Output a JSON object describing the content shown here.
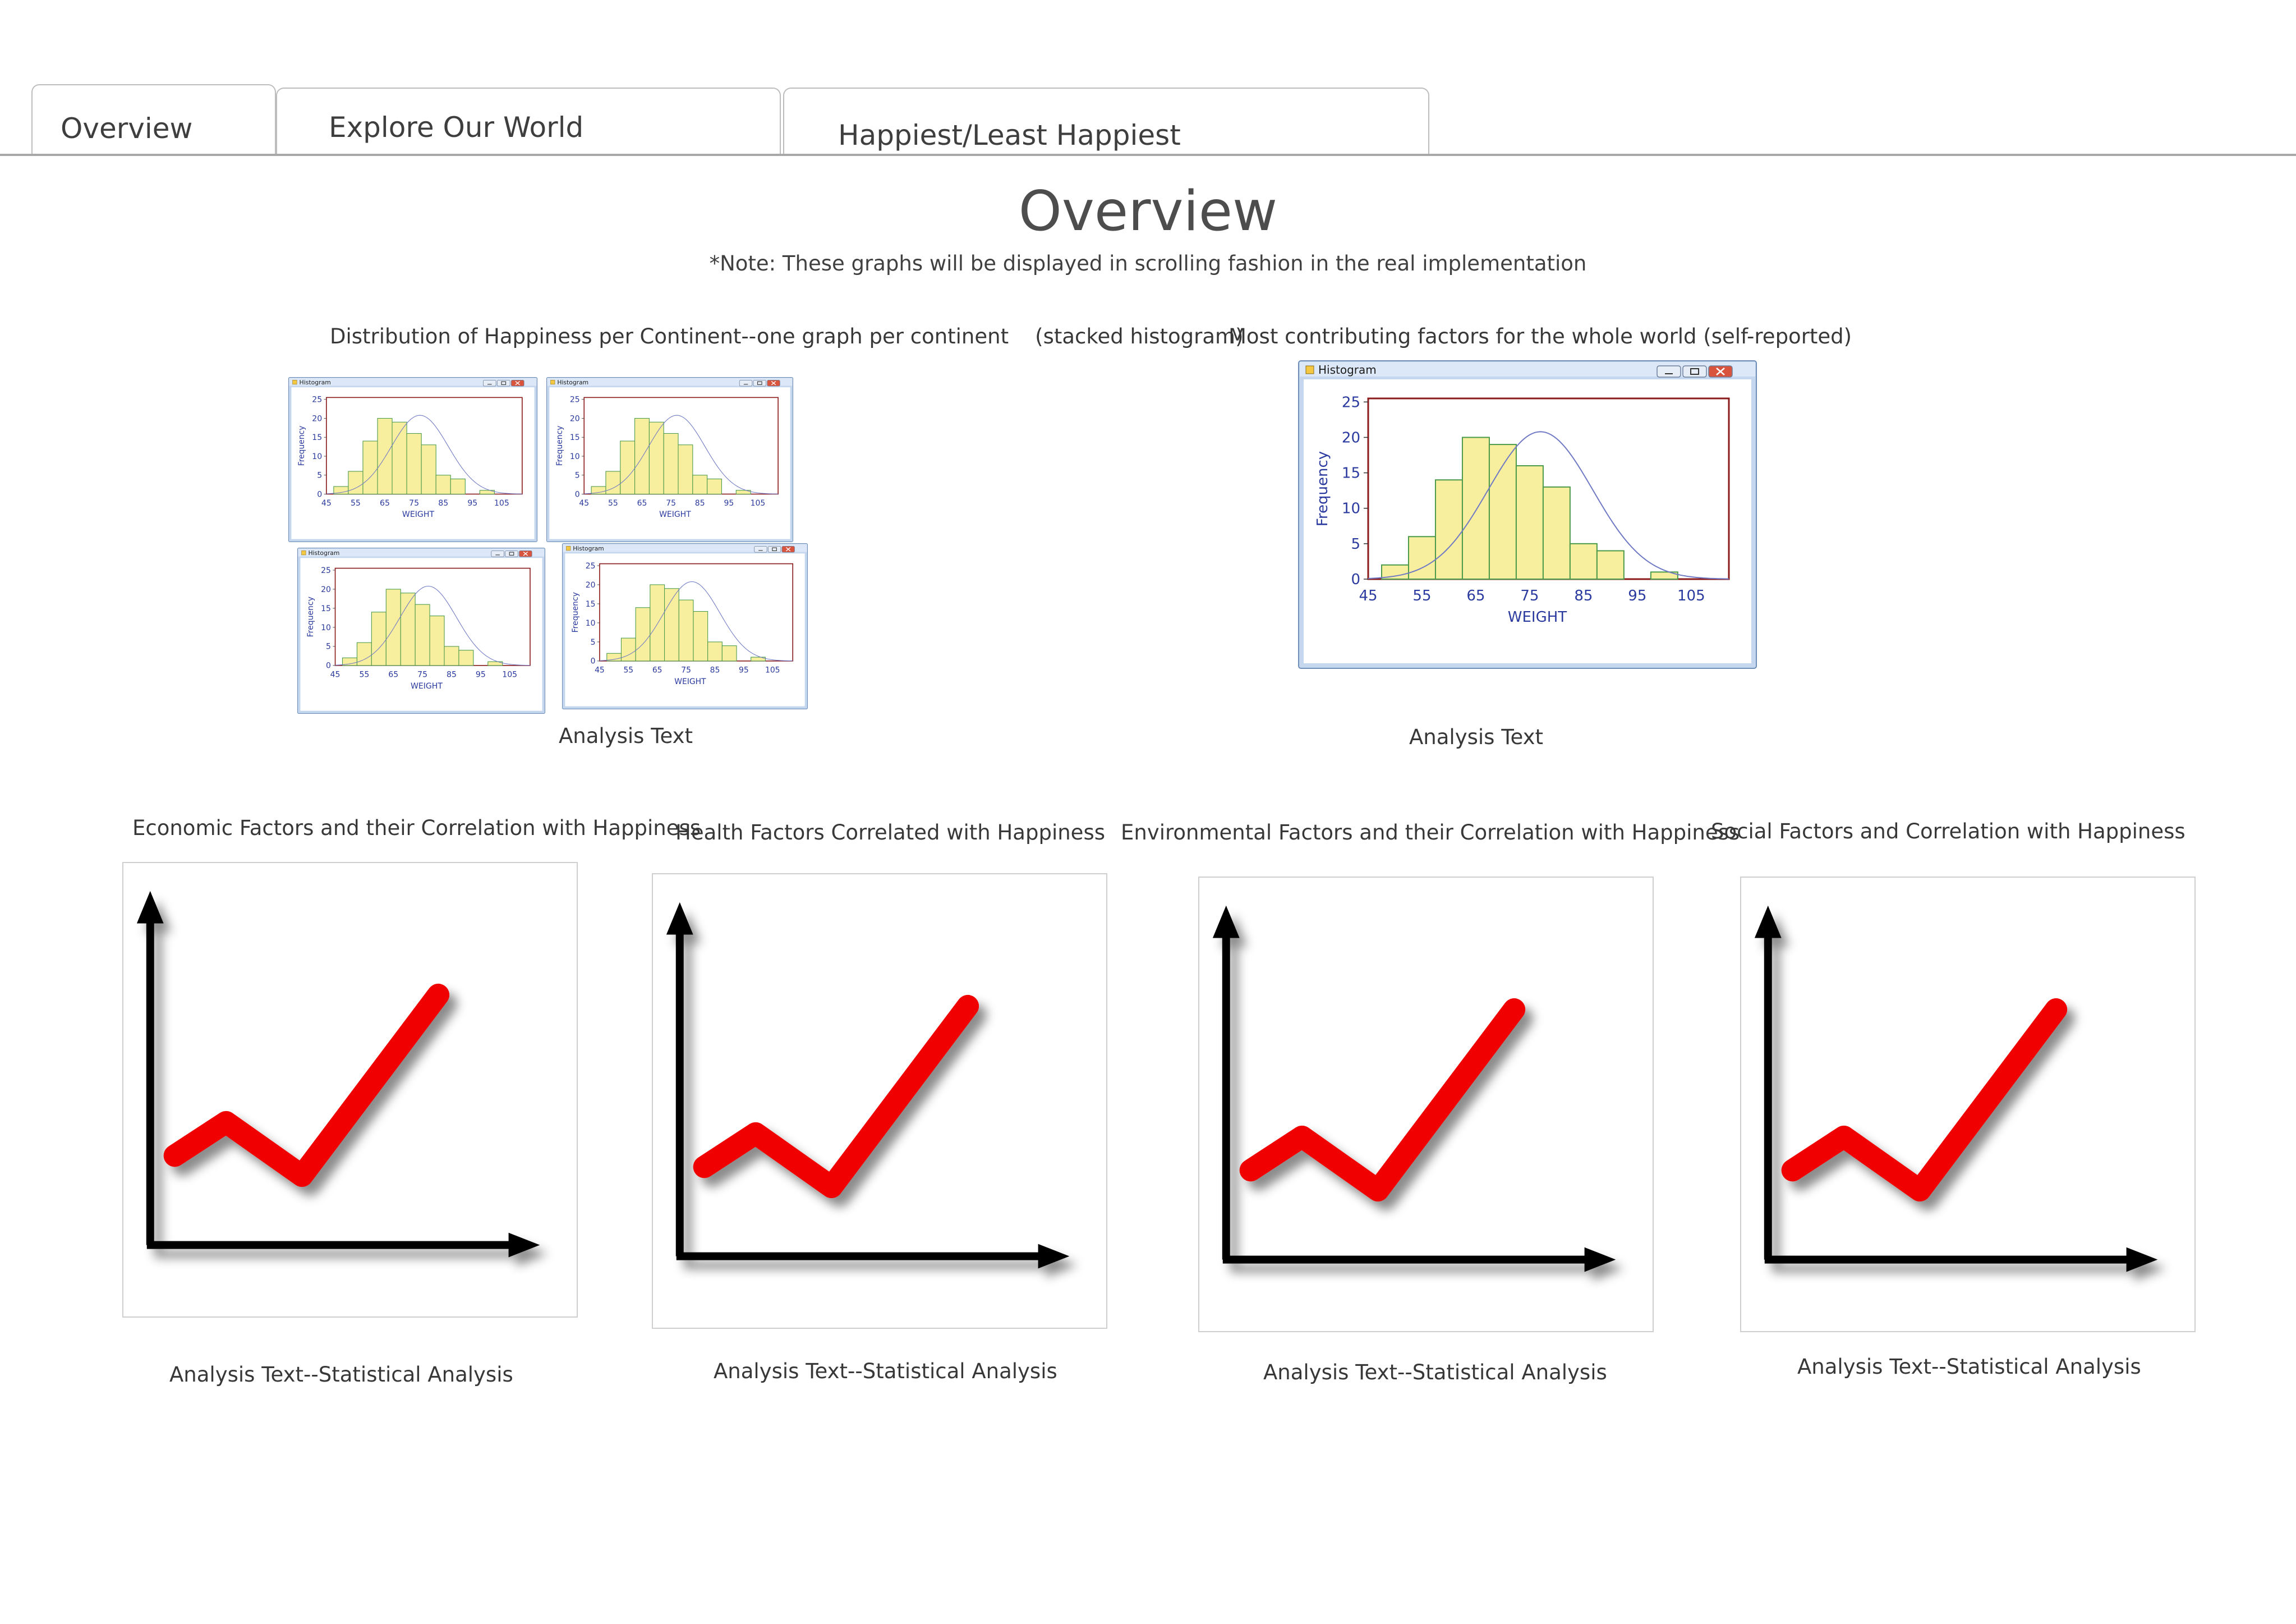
{
  "tabs": [
    {
      "label": "Overview",
      "active": true
    },
    {
      "label": "Explore Our World",
      "active": false
    },
    {
      "label": "Happiest/Least Happiest",
      "active": false
    }
  ],
  "page": {
    "title": "Overview",
    "note": "*Note: These graphs will be displayed in scrolling fashion in the real implementation"
  },
  "histograms": {
    "continent": {
      "caption": "Distribution of Happiness per Continent--one graph per continent    (stacked histogram)",
      "analysis": "Analysis Text"
    },
    "world": {
      "caption": "Most contributing factors for the whole world (self-reported)",
      "analysis": "Analysis Text"
    },
    "window_title": "Histogram",
    "ylabel": "Frequency",
    "xlabel": "WEIGHT"
  },
  "chart_data": [
    {
      "type": "bar",
      "xlabel": "WEIGHT",
      "ylabel": "Frequency",
      "x_ticks": [
        45,
        55,
        65,
        75,
        85,
        95,
        105
      ],
      "y_ticks": [
        0,
        5,
        10,
        15,
        20,
        25
      ],
      "xlim": [
        45,
        112
      ],
      "ylim": [
        0,
        25.5
      ],
      "bin_width": 5,
      "bins": [
        {
          "x": 50,
          "value": 2
        },
        {
          "x": 55,
          "value": 6
        },
        {
          "x": 60,
          "value": 14
        },
        {
          "x": 65,
          "value": 20
        },
        {
          "x": 70,
          "value": 19
        },
        {
          "x": 75,
          "value": 16
        },
        {
          "x": 80,
          "value": 13
        },
        {
          "x": 85,
          "value": 5
        },
        {
          "x": 90,
          "value": 4
        },
        {
          "x": 100,
          "value": 1
        }
      ],
      "normal_curve": {
        "mean": 77,
        "sd": 9.7,
        "peak": 20.8
      },
      "colors": {
        "bar": "#f8ef9e",
        "bar_edge": "#4a9a4a",
        "curve": "#6f79c4",
        "axis": "#8b1a1a",
        "label": "#2b3a9e"
      }
    }
  ],
  "correlation_panels": [
    {
      "title": "Economic Factors and their Correlation with Happiness",
      "analysis": "Analysis Text--Statistical Analysis"
    },
    {
      "title": "Health Factors Correlated with Happiness",
      "analysis": "Analysis Text--Statistical Analysis"
    },
    {
      "title": "Environmental Factors and their Correlation with Happiness",
      "analysis": "Analysis Text--Statistical Analysis"
    },
    {
      "title": "Social Factors and Correlation with Happiness",
      "analysis": "Analysis Text--Statistical Analysis"
    }
  ],
  "colors": {
    "trend_line": "#f00000",
    "trend_axes": "#000000"
  }
}
